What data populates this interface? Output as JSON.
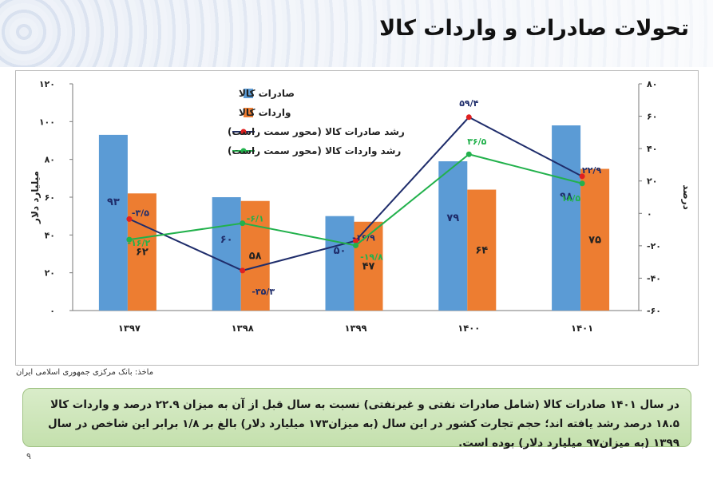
{
  "slide": {
    "title": "تحولات صادرات و واردات کالا",
    "source": "ماخذ: بانک مرکزی جمهوری اسلامی ایران",
    "note": "در سال ۱۴۰۱ صادرات کالا (شامل صادرات نفتی و غیرنفتی) نسبت به سال قبل از آن به میزان ۲۲.۹ درصد و واردات کالا ۱۸.۵ درصد رشد یافته اند؛ حجم تجارت کشور در این سال (به میزان۱۷۳ میلیارد دلار) بالغ بر ۱/۸ برابر این شاخص در سال ۱۳۹۹ (به میزان۹۷ میلیارد دلار) بوده است.",
    "page_number": "۹"
  },
  "chart_data": {
    "type": "bar",
    "categories": [
      "۱۳۹۷",
      "۱۳۹۸",
      "۱۳۹۹",
      "۱۴۰۰",
      "۱۴۰۱"
    ],
    "left_axis": {
      "label": "میلیارد دلار",
      "range": [
        0,
        120
      ],
      "ticks": [
        "۰",
        "۲۰",
        "۴۰",
        "۶۰",
        "۸۰",
        "۱۰۰",
        "۱۲۰"
      ]
    },
    "right_axis": {
      "label": "درصد",
      "range": [
        -60,
        80
      ],
      "ticks": [
        "-۶۰",
        "-۴۰",
        "-۲۰",
        "۰",
        "۲۰",
        "۴۰",
        "۶۰",
        "۸۰"
      ]
    },
    "bar_series": [
      {
        "name": "صادرات کالا",
        "color": "#5b9bd5",
        "values": [
          93,
          60,
          50,
          79,
          98
        ],
        "labels": [
          "۹۳",
          "۶۰",
          "۵۰",
          "۷۹",
          "۹۸"
        ]
      },
      {
        "name": "واردات کالا",
        "color": "#ed7d31",
        "values": [
          62,
          58,
          47,
          64,
          75
        ],
        "labels": [
          "۶۲",
          "۵۸",
          "۴۷",
          "۶۴",
          "۷۵"
        ]
      }
    ],
    "line_series": [
      {
        "name": "رشد صادرات کالا (محور سمت راست)",
        "color": "#1f2d6b",
        "marker_color": "#e02020",
        "values": [
          -3.5,
          -35.3,
          -16.9,
          59.4,
          22.9
        ],
        "labels": [
          "-۳/۵",
          "-۳۵/۳",
          "-۱۶/۹",
          "۵۹/۴",
          "۲۲/۹"
        ]
      },
      {
        "name": "رشد واردات کالا (محور سمت راست)",
        "color": "#22b14c",
        "marker_color": "#22b14c",
        "values": [
          -16.2,
          -6.1,
          -19.8,
          36.5,
          18.5
        ],
        "labels": [
          "-۱۶/۲",
          "-۶/۱",
          "-۱۹/۸",
          "۳۶/۵",
          "۱۸/۵"
        ]
      }
    ],
    "grid": false,
    "legend_position": "top-left"
  }
}
